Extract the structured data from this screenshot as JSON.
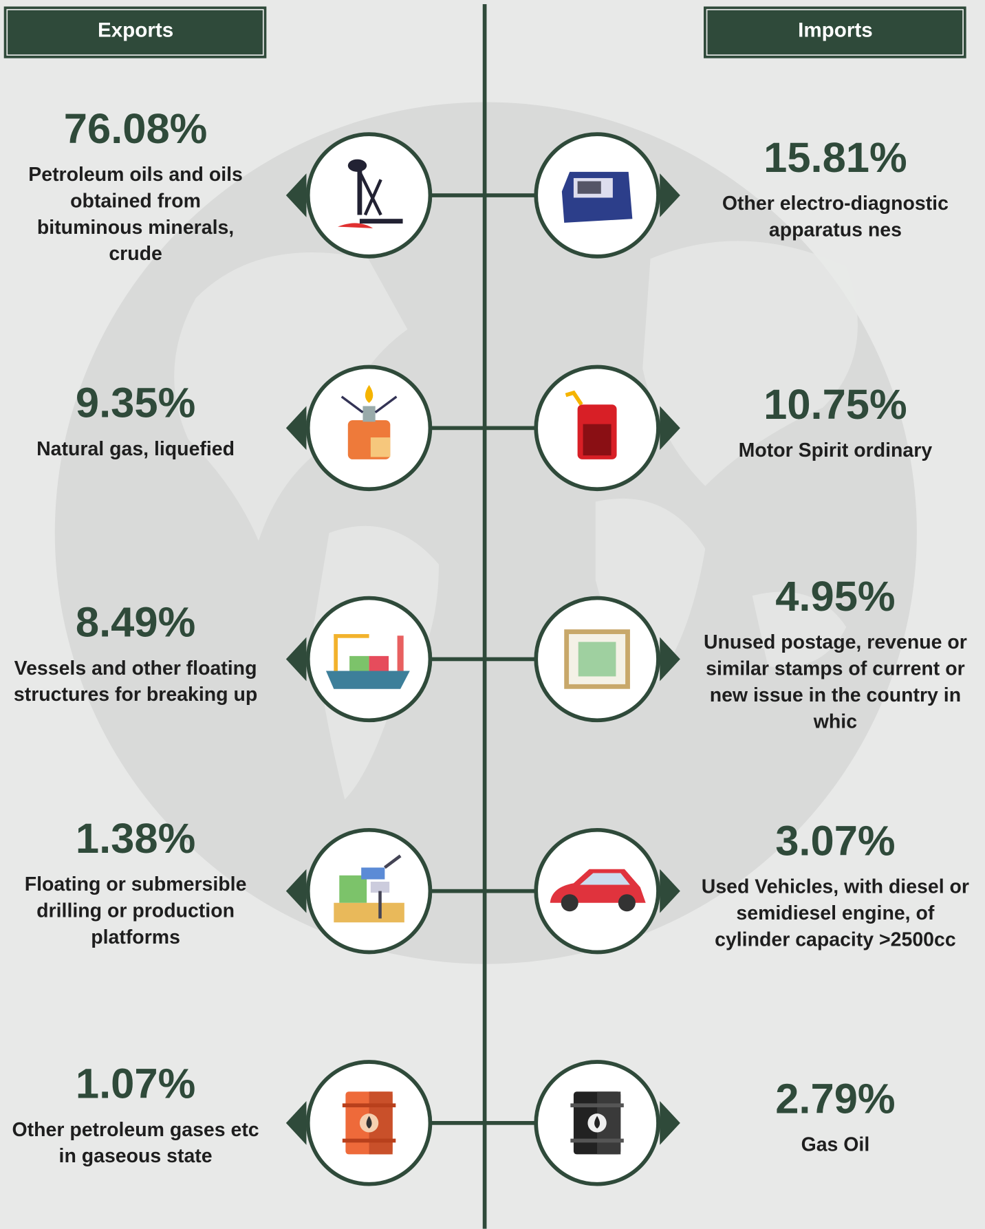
{
  "exports": {
    "title": "Exports",
    "items": [
      {
        "value": "76.08%",
        "label_lines": [
          "Petroleum oils and oils",
          "obtained from",
          "bituminous minerals,",
          "crude"
        ]
      },
      {
        "value": "9.35%",
        "label_lines": [
          "Natural gas, liquefied"
        ]
      },
      {
        "value": "8.49%",
        "label_lines": [
          "Vessels and other floating",
          "structures for breaking up"
        ]
      },
      {
        "value": "1.38%",
        "label_lines": [
          "Floating or submersible",
          "drilling or production",
          "platforms"
        ]
      },
      {
        "value": "1.07%",
        "label_lines": [
          "Other petroleum gases etc",
          "in gaseous state"
        ]
      }
    ]
  },
  "imports": {
    "title": "Imports",
    "items": [
      {
        "value": "15.81%",
        "label_lines": [
          "Other electro-diagnostic",
          "apparatus nes"
        ]
      },
      {
        "value": "10.75%",
        "label_lines": [
          "Motor Spirit ordinary"
        ]
      },
      {
        "value": "4.95%",
        "label_lines": [
          "Unused postage, revenue or",
          "similar stamps of current or",
          "new issue in the country in",
          "whic"
        ]
      },
      {
        "value": "3.07%",
        "label_lines": [
          "Used Vehicles, with diesel or",
          "semidiesel engine, of",
          "cylinder capacity >2500cc"
        ]
      },
      {
        "value": "2.79%",
        "label_lines": [
          "Gas Oil"
        ]
      }
    ]
  }
}
